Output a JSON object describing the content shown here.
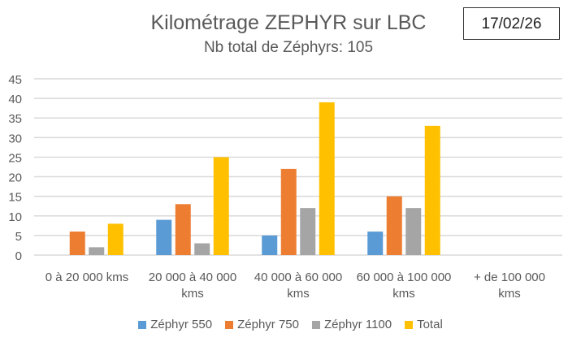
{
  "date_label": "17/02/26",
  "chart_data": {
    "type": "bar",
    "title": "Kilométrage ZEPHYR sur LBC",
    "subtitle": "Nb total de Zéphyrs: 105",
    "categories": [
      [
        "0 à 20 000 kms"
      ],
      [
        "20 000 à 40 000",
        "kms"
      ],
      [
        "40 000 à 60 000",
        "kms"
      ],
      [
        "60 000 à 100 000",
        "kms"
      ],
      [
        "+ de 100 000",
        "kms"
      ]
    ],
    "series": [
      {
        "name": "Zéphyr 550",
        "color": "#5B9BD5",
        "values": [
          0,
          9,
          5,
          6,
          0
        ]
      },
      {
        "name": "Zéphyr 750",
        "color": "#ED7D31",
        "values": [
          6,
          13,
          22,
          15,
          0
        ]
      },
      {
        "name": "Zéphyr 1100",
        "color": "#A5A5A5",
        "values": [
          2,
          3,
          12,
          12,
          0
        ]
      },
      {
        "name": "Total",
        "color": "#FFC000",
        "values": [
          8,
          25,
          39,
          33,
          0
        ]
      }
    ],
    "ylim": [
      0,
      45
    ],
    "yticks": [
      0,
      5,
      10,
      15,
      20,
      25,
      30,
      35,
      40,
      45
    ],
    "grid": true,
    "legend": "bottom"
  }
}
